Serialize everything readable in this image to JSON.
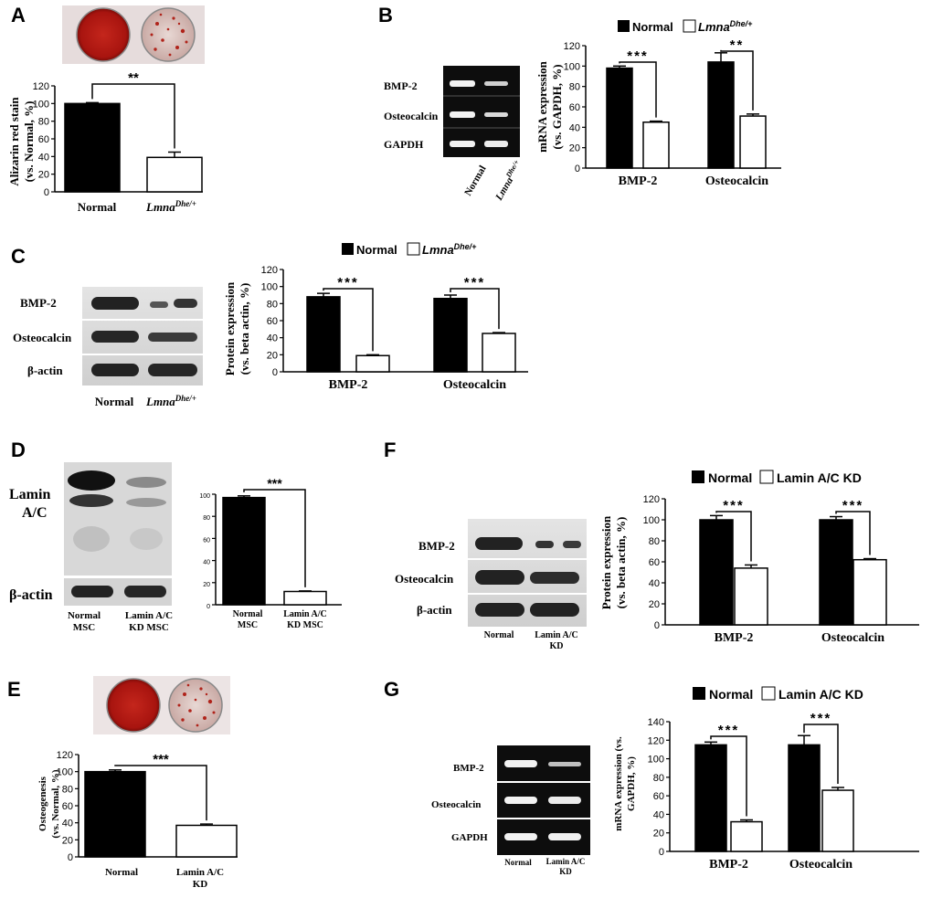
{
  "colors": {
    "normal": "#000000",
    "lamin": "#ffffff",
    "stain_red": "#b51c14",
    "blot_band": "#222222",
    "blot_bg": "#d6d6d6",
    "gel_bg": "#0d0d0d",
    "gel_band": "#f2f2f2"
  },
  "panels": {
    "A": {
      "letter": "A",
      "ylabel_1": "Alizarin red stain",
      "ylabel_2": "(vs. Normal, %)",
      "sig": "**",
      "x_normal": "Normal",
      "x_lamin_main": "Lmna",
      "x_lamin_sup": "Dhe/+"
    },
    "B": {
      "letter": "B",
      "legend_normal": "Normal",
      "legend_lamin_main": "Lmna",
      "legend_lamin_sup": "Dhe/+",
      "gel_labels": [
        "BMP-2",
        "Osteocalcin",
        "GAPDH"
      ],
      "lane_normal": "Normal",
      "lane_lamin_main": "Lmna",
      "lane_lamin_sup": "Dhe/+",
      "ylabel_1": "mRNA expression",
      "ylabel_2": "(vs. GAPDH, %)",
      "sig": [
        "***",
        "**"
      ]
    },
    "C": {
      "letter": "C",
      "legend_normal": "Normal",
      "legend_lamin_main": "Lmna",
      "legend_lamin_sup": "Dhe/+",
      "blot_labels": [
        "BMP-2",
        "Osteocalcin",
        "β-actin"
      ],
      "lane_normal": "Normal",
      "lane_lamin_main": "Lmna",
      "lane_lamin_sup": "Dhe/+",
      "ylabel_1": "Protein expression",
      "ylabel_2": "(vs. beta actin, %)",
      "sig": [
        "***",
        "***"
      ]
    },
    "D": {
      "letter": "D",
      "blot_label_1": "Lamin",
      "blot_label_2": "A/C",
      "blot_label_actin": "β-actin",
      "lane_normal_1": "Normal",
      "lane_normal_2": "MSC",
      "lane_kd_1": "Lamin  A/C",
      "lane_kd_2": "KD MSC",
      "chart_normal_1": "Normal",
      "chart_normal_2": "MSC",
      "chart_kd_1": "Lamin A/C",
      "chart_kd_2": "KD MSC",
      "sig": "***"
    },
    "E": {
      "letter": "E",
      "ylabel_1": "Osteogenesis",
      "ylabel_2": "(vs. Normal, %)",
      "sig": "***",
      "x_normal": "Normal",
      "x_kd_1": "Lamin A/C",
      "x_kd_2": "KD"
    },
    "F": {
      "letter": "F",
      "legend_normal": "Normal",
      "legend_lamin": "Lamin A/C KD",
      "blot_labels": [
        "BMP-2",
        "Osteocalcin",
        "β-actin"
      ],
      "lane_normal": "Normal",
      "lane_kd_1": "Lamin A/C",
      "lane_kd_2": "KD",
      "ylabel_1": "Protein expression",
      "ylabel_2": "(vs. beta actin, %)",
      "sig": [
        "***",
        "***"
      ]
    },
    "G": {
      "letter": "G",
      "legend_normal": "Normal",
      "legend_lamin": "Lamin A/C KD",
      "gel_labels": [
        "BMP-2",
        "Osteocalcin",
        "GAPDH"
      ],
      "lane_normal": "Normal",
      "lane_kd_1": "Lamin A/C",
      "lane_kd_2": "KD",
      "ylabel_1": "mRNA expression (vs.",
      "ylabel_2": "GAPDH, %)",
      "sig": [
        "***",
        "***"
      ]
    }
  },
  "chart_data": [
    {
      "id": "A",
      "type": "bar",
      "categories": [
        "Normal",
        "LmnaDhe/+"
      ],
      "series": [
        {
          "values": [
            100,
            39
          ],
          "errors": [
            1,
            6
          ]
        }
      ],
      "ylim": [
        0,
        120
      ],
      "yticks": [
        0,
        20,
        40,
        60,
        80,
        100,
        120
      ],
      "grid": false
    },
    {
      "id": "B",
      "type": "bar",
      "categories": [
        "BMP-2",
        "Osteocalcin"
      ],
      "series": [
        {
          "name": "Normal",
          "values": [
            98,
            104
          ],
          "errors": [
            2,
            9
          ]
        },
        {
          "name": "LmnaDhe/+",
          "values": [
            45,
            51
          ],
          "errors": [
            1,
            2
          ]
        }
      ],
      "ylim": [
        0,
        120
      ],
      "yticks": [
        0,
        20,
        40,
        60,
        80,
        100,
        120
      ],
      "grid": false
    },
    {
      "id": "C",
      "type": "bar",
      "categories": [
        "BMP-2",
        "Osteocalcin"
      ],
      "series": [
        {
          "name": "Normal",
          "values": [
            88,
            86
          ],
          "errors": [
            4,
            4
          ]
        },
        {
          "name": "LmnaDhe/+",
          "values": [
            19,
            45
          ],
          "errors": [
            1,
            1
          ]
        }
      ],
      "ylim": [
        0,
        120
      ],
      "yticks": [
        0,
        20,
        40,
        60,
        80,
        100,
        120
      ],
      "grid": false
    },
    {
      "id": "D",
      "type": "bar",
      "categories": [
        "Normal MSC",
        "Lamin A/C KD MSC"
      ],
      "series": [
        {
          "values": [
            97,
            12
          ],
          "errors": [
            1.5,
            0.5
          ]
        }
      ],
      "ylim": [
        0,
        100
      ],
      "yticks": [
        0,
        20,
        40,
        60,
        80,
        100
      ],
      "grid": false
    },
    {
      "id": "E",
      "type": "bar",
      "categories": [
        "Normal",
        "Lamin A/C KD"
      ],
      "series": [
        {
          "values": [
            100,
            37
          ],
          "errors": [
            2,
            1.5
          ]
        }
      ],
      "ylim": [
        0,
        120
      ],
      "yticks": [
        0,
        20,
        40,
        60,
        80,
        100,
        120
      ],
      "grid": false
    },
    {
      "id": "F",
      "type": "bar",
      "categories": [
        "BMP-2",
        "Osteocalcin"
      ],
      "series": [
        {
          "name": "Normal",
          "values": [
            100,
            100
          ],
          "errors": [
            4,
            3
          ]
        },
        {
          "name": "Lamin A/C KD",
          "values": [
            54,
            62
          ],
          "errors": [
            3,
            1
          ]
        }
      ],
      "ylim": [
        0,
        120
      ],
      "yticks": [
        0,
        20,
        40,
        60,
        80,
        100,
        120
      ],
      "grid": false
    },
    {
      "id": "G",
      "type": "bar",
      "categories": [
        "BMP-2",
        "Osteocalcin"
      ],
      "series": [
        {
          "name": "Normal",
          "values": [
            115,
            115
          ],
          "errors": [
            3,
            10
          ]
        },
        {
          "name": "Lamin A/C KD",
          "values": [
            32,
            66
          ],
          "errors": [
            2,
            3
          ]
        }
      ],
      "ylim": [
        0,
        140
      ],
      "yticks": [
        0,
        20,
        40,
        60,
        80,
        100,
        120,
        140
      ],
      "grid": false
    }
  ]
}
